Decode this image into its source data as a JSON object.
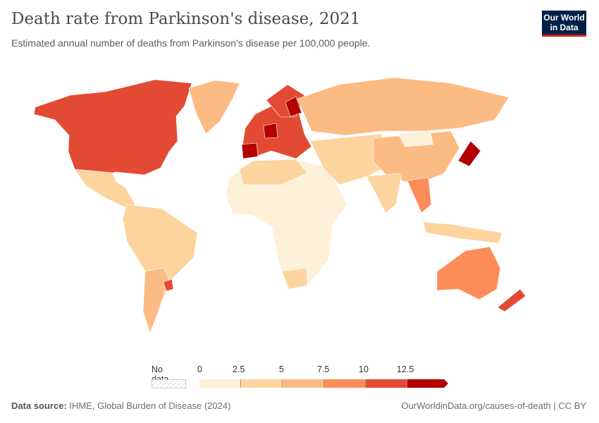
{
  "title": "Death rate from Parkinson's disease, 2021",
  "subtitle": "Estimated annual number of deaths from Parkinson's disease per 100,000 people.",
  "logo": {
    "line1": "Our World",
    "line2": "in Data"
  },
  "legend": {
    "no_data": "No data",
    "ticks": [
      "0",
      "2.5",
      "5",
      "7.5",
      "10",
      "12.5"
    ],
    "colors": [
      "#fef0d9",
      "#fdd49e",
      "#fdbb84",
      "#fc8d59",
      "#e34a33",
      "#b30000"
    ],
    "no_data_color": "#e8e8e8"
  },
  "footer": {
    "source_label": "Data source:",
    "source": "IHME, Global Burden of Disease (2024)",
    "url": "OurWorldinData.org/causes-of-death | CC BY"
  },
  "chart_data": {
    "type": "map",
    "title": "Death rate from Parkinson's disease, 2021",
    "unit": "deaths per 100,000",
    "bins": [
      0,
      2.5,
      5,
      7.5,
      10,
      12.5
    ]
  }
}
